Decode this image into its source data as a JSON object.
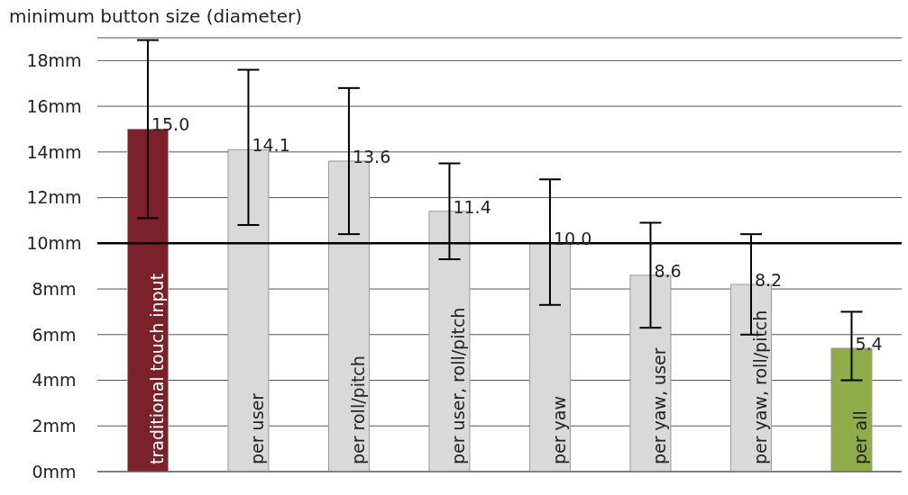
{
  "chart_data": {
    "type": "bar",
    "ylabel": "minimum button size (diameter)",
    "categories": [
      "traditional touch input",
      "per user",
      "per roll/pitch",
      "per user, roll/pitch",
      "per yaw",
      "per yaw, user",
      "per yaw, roll/pitch",
      "per all"
    ],
    "values": [
      15.0,
      14.1,
      13.6,
      11.4,
      10.0,
      8.6,
      8.2,
      5.4
    ],
    "value_labels": [
      "15.0",
      "14.1",
      "13.6",
      "11.4",
      "10.0",
      "8.6",
      "8.2",
      "5.4"
    ],
    "colors": [
      "#7b2129",
      "#d9d9d9",
      "#d9d9d9",
      "#d9d9d9",
      "#d9d9d9",
      "#d9d9d9",
      "#d9d9d9",
      "#8fac4a"
    ],
    "errors": [
      [
        11.1,
        18.9
      ],
      [
        10.8,
        17.6
      ],
      [
        10.4,
        16.8
      ],
      [
        9.3,
        13.5
      ],
      [
        7.3,
        12.8
      ],
      [
        6.3,
        10.9
      ],
      [
        6.0,
        10.4
      ],
      [
        4.0,
        7.0
      ]
    ],
    "ylim": [
      0,
      19
    ],
    "yticks": [
      {
        "value": 0,
        "label": "0mm"
      },
      {
        "value": 2,
        "label": "2mm"
      },
      {
        "value": 4,
        "label": "4mm"
      },
      {
        "value": 6,
        "label": "6mm"
      },
      {
        "value": 8,
        "label": "8mm"
      },
      {
        "value": 10,
        "label": "10mm"
      },
      {
        "value": 12,
        "label": "12mm"
      },
      {
        "value": 14,
        "label": "14mm"
      },
      {
        "value": 16,
        "label": "16mm"
      },
      {
        "value": 18,
        "label": "18mm"
      }
    ],
    "grid": "y",
    "ref_lines": [
      {
        "axis": "y",
        "value": 10,
        "color": "#000000"
      }
    ],
    "legend": false
  }
}
